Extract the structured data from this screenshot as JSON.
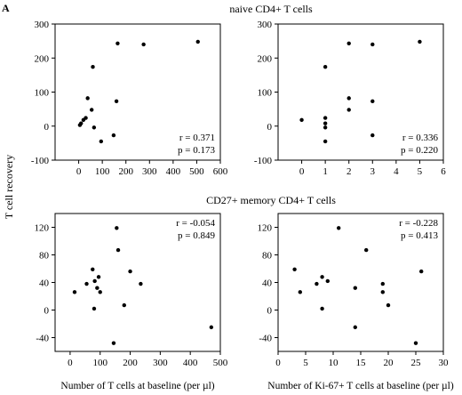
{
  "panel_letter": "A",
  "section_titles": [
    "naive CD4+ T cells",
    "CD27+ memory CD4+ T cells"
  ],
  "shared_ylabel": "T cell recovery",
  "chart_data": [
    {
      "type": "scatter",
      "title": "naive CD4+ T cells",
      "xlabel": "",
      "ylabel": "T cell recovery",
      "xlim": [
        -100,
        600
      ],
      "ylim": [
        -100,
        300
      ],
      "xticks": [
        0,
        100,
        200,
        300,
        400,
        500,
        600
      ],
      "yticks": [
        -100,
        0,
        100,
        200,
        300
      ],
      "stats": [
        "r = 0.371",
        "p = 0.173"
      ],
      "points": [
        {
          "x": 5,
          "y": 3
        },
        {
          "x": 10,
          "y": 8
        },
        {
          "x": 20,
          "y": 18
        },
        {
          "x": 30,
          "y": 24
        },
        {
          "x": 38,
          "y": 82
        },
        {
          "x": 55,
          "y": 48
        },
        {
          "x": 60,
          "y": 174
        },
        {
          "x": 65,
          "y": -4
        },
        {
          "x": 95,
          "y": -45
        },
        {
          "x": 148,
          "y": -27
        },
        {
          "x": 160,
          "y": 73
        },
        {
          "x": 165,
          "y": 243
        },
        {
          "x": 275,
          "y": 240
        },
        {
          "x": 505,
          "y": 248
        }
      ]
    },
    {
      "type": "scatter",
      "title": "",
      "xlabel": "",
      "ylabel": "",
      "xlim": [
        -1,
        6
      ],
      "ylim": [
        -100,
        300
      ],
      "xticks": [
        0,
        1,
        2,
        3,
        4,
        5,
        6
      ],
      "yticks": [
        -100,
        0,
        100,
        200,
        300
      ],
      "stats": [
        "r = 0.336",
        "p = 0.220"
      ],
      "points": [
        {
          "x": 0,
          "y": 18
        },
        {
          "x": 1,
          "y": 174
        },
        {
          "x": 1,
          "y": 24
        },
        {
          "x": 1,
          "y": 8
        },
        {
          "x": 1,
          "y": -4
        },
        {
          "x": 1,
          "y": -45
        },
        {
          "x": 2,
          "y": 243
        },
        {
          "x": 2,
          "y": 82
        },
        {
          "x": 2,
          "y": 48
        },
        {
          "x": 3,
          "y": 240
        },
        {
          "x": 3,
          "y": 73
        },
        {
          "x": 3,
          "y": -27
        },
        {
          "x": 5,
          "y": 248
        }
      ]
    },
    {
      "type": "scatter",
      "title": "CD27+ memory CD4+ T cells",
      "xlabel": "Number of T cells at baseline (per µl)",
      "ylabel": "T cell recovery",
      "xlim": [
        -50,
        500
      ],
      "ylim": [
        -60,
        140
      ],
      "xticks": [
        0,
        100,
        200,
        300,
        400,
        500
      ],
      "yticks": [
        -40,
        0,
        40,
        80,
        120
      ],
      "stats": [
        "r = -0.054",
        "p = 0.849"
      ],
      "points": [
        {
          "x": 15,
          "y": 26
        },
        {
          "x": 55,
          "y": 38
        },
        {
          "x": 75,
          "y": 59
        },
        {
          "x": 80,
          "y": 2
        },
        {
          "x": 82,
          "y": 42
        },
        {
          "x": 90,
          "y": 32
        },
        {
          "x": 95,
          "y": 48
        },
        {
          "x": 100,
          "y": 26
        },
        {
          "x": 145,
          "y": -48
        },
        {
          "x": 155,
          "y": 119
        },
        {
          "x": 160,
          "y": 87
        },
        {
          "x": 180,
          "y": 7
        },
        {
          "x": 200,
          "y": 56
        },
        {
          "x": 235,
          "y": 38
        },
        {
          "x": 470,
          "y": -25
        }
      ]
    },
    {
      "type": "scatter",
      "title": "",
      "xlabel": "Number of Ki-67+ T cells at baseline (per µl)",
      "ylabel": "",
      "xlim": [
        0,
        30
      ],
      "ylim": [
        -60,
        140
      ],
      "xticks": [
        0,
        5,
        10,
        15,
        20,
        25,
        30
      ],
      "yticks": [
        -40,
        0,
        40,
        80,
        120
      ],
      "stats": [
        "r = -0.228",
        "p = 0.413"
      ],
      "points": [
        {
          "x": 3,
          "y": 59
        },
        {
          "x": 4,
          "y": 26
        },
        {
          "x": 7,
          "y": 38
        },
        {
          "x": 8,
          "y": 2
        },
        {
          "x": 8,
          "y": 48
        },
        {
          "x": 9,
          "y": 42
        },
        {
          "x": 11,
          "y": 119
        },
        {
          "x": 14,
          "y": 32
        },
        {
          "x": 14,
          "y": -25
        },
        {
          "x": 16,
          "y": 87
        },
        {
          "x": 19,
          "y": 38
        },
        {
          "x": 19,
          "y": 26
        },
        {
          "x": 20,
          "y": 7
        },
        {
          "x": 25,
          "y": -48
        },
        {
          "x": 26,
          "y": 56
        }
      ]
    }
  ]
}
